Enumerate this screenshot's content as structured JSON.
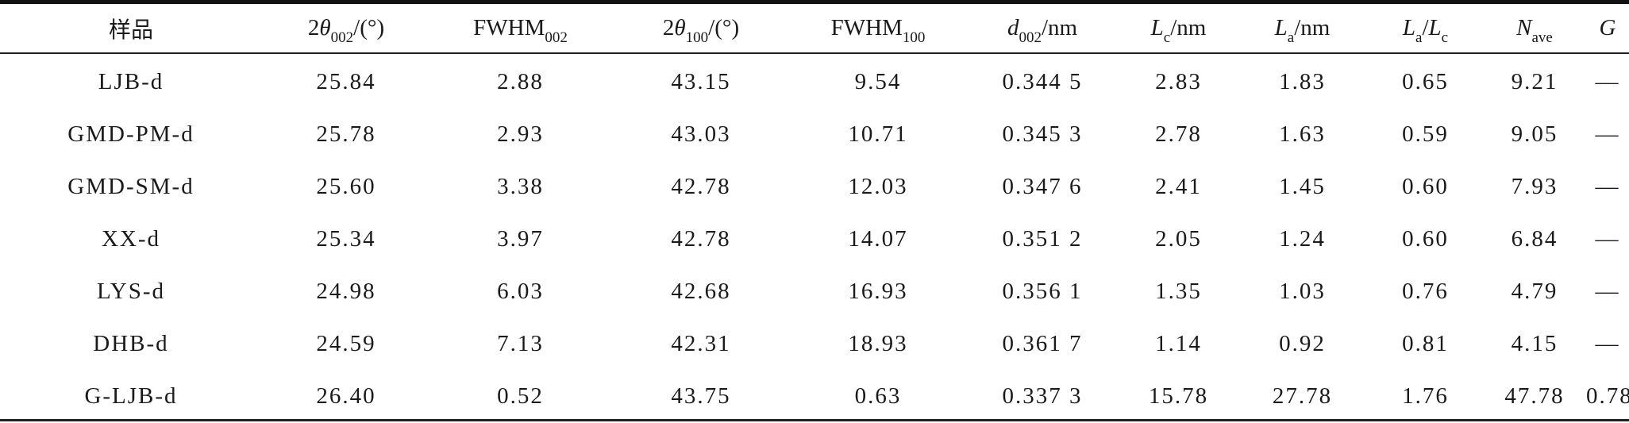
{
  "table": {
    "headers": [
      {
        "key": "sample",
        "text": "样品"
      },
      {
        "key": "two_theta_002",
        "pre": "2",
        "var": "θ",
        "sub": "002",
        "post": "/(°)"
      },
      {
        "key": "fwhm_002",
        "pre": "FWHM",
        "sub": "002"
      },
      {
        "key": "two_theta_100",
        "pre": "2",
        "var": "θ",
        "sub": "100",
        "post": "/(°)"
      },
      {
        "key": "fwhm_100",
        "pre": "FWHM",
        "sub": "100"
      },
      {
        "key": "d_002",
        "var": "d",
        "sub": "002",
        "post": "/nm"
      },
      {
        "key": "lc",
        "var": "L",
        "sub": "c",
        "post": "/nm"
      },
      {
        "key": "la",
        "var": "L",
        "sub": "a",
        "post": "/nm"
      },
      {
        "key": "la_lc_a",
        "var": "L",
        "sub": "a",
        "post": "/",
        "var2": "L",
        "sub2": "c"
      },
      {
        "key": "n_ave",
        "var": "N",
        "sub": "ave"
      },
      {
        "key": "g",
        "var": "G"
      }
    ],
    "rows": [
      [
        "LJB-d",
        "25.84",
        "2.88",
        "43.15",
        "9.54",
        "0.344 5",
        "2.83",
        "1.83",
        "0.65",
        "9.21",
        "—"
      ],
      [
        "GMD-PM-d",
        "25.78",
        "2.93",
        "43.03",
        "10.71",
        "0.345 3",
        "2.78",
        "1.63",
        "0.59",
        "9.05",
        "—"
      ],
      [
        "GMD-SM-d",
        "25.60",
        "3.38",
        "42.78",
        "12.03",
        "0.347 6",
        "2.41",
        "1.45",
        "0.60",
        "7.93",
        "—"
      ],
      [
        "XX-d",
        "25.34",
        "3.97",
        "42.78",
        "14.07",
        "0.351 2",
        "2.05",
        "1.24",
        "0.60",
        "6.84",
        "—"
      ],
      [
        "LYS-d",
        "24.98",
        "6.03",
        "42.68",
        "16.93",
        "0.356 1",
        "1.35",
        "1.03",
        "0.76",
        "4.79",
        "—"
      ],
      [
        "DHB-d",
        "24.59",
        "7.13",
        "42.31",
        "18.93",
        "0.361 7",
        "1.14",
        "0.92",
        "0.81",
        "4.15",
        "—"
      ],
      [
        "G-LJB-d",
        "26.40",
        "0.52",
        "43.75",
        "0.63",
        "0.337 3",
        "15.78",
        "27.78",
        "1.76",
        "47.78",
        "0.78"
      ]
    ]
  }
}
